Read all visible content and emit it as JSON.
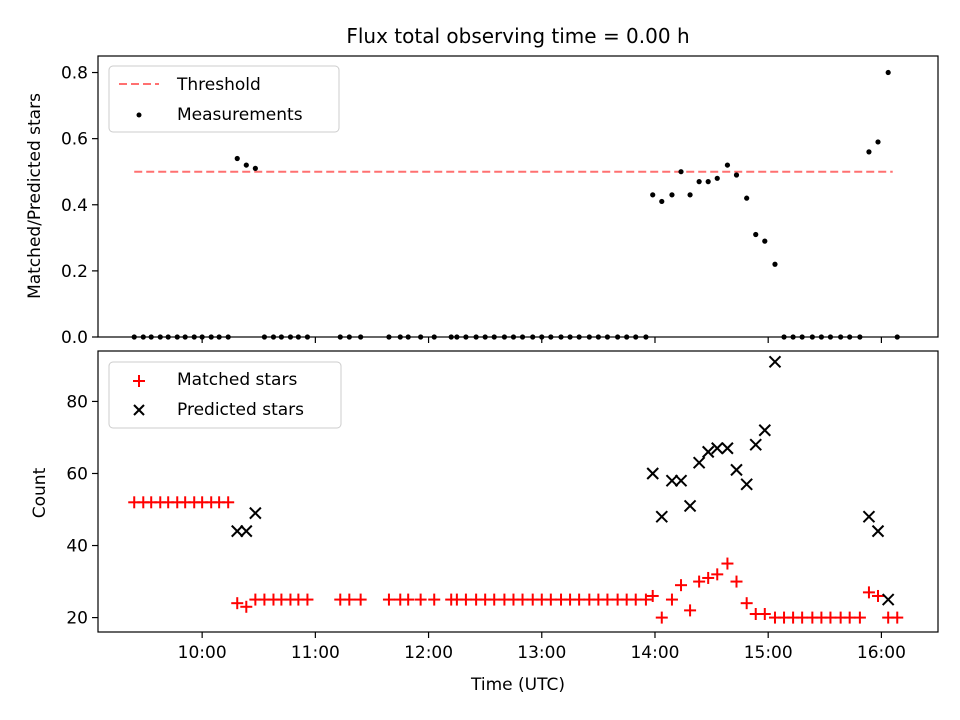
{
  "chart_data": [
    {
      "type": "scatter",
      "title": "Flux total observing time = 0.00 h",
      "xlabel": "",
      "ylabel": "Matched/Predicted stars",
      "ylim": [
        0,
        0.85
      ],
      "yticks": [
        0.0,
        0.2,
        0.4,
        0.6,
        0.8
      ],
      "ytick_labels": [
        "0.0",
        "0.2",
        "0.4",
        "0.6",
        "0.8"
      ],
      "xlim": [
        9.08,
        16.5
      ],
      "xticks": [
        10,
        11,
        12,
        13,
        14,
        15,
        16
      ],
      "grid": false,
      "legend_position": "upper-left",
      "threshold": {
        "name": "Threshold",
        "value": 0.5,
        "x_range": [
          9.4,
          16.1
        ],
        "color": "#ff7070"
      },
      "series": [
        {
          "name": "Measurements",
          "color": "#000000",
          "points": [
            [
              9.4,
              0
            ],
            [
              9.48,
              0
            ],
            [
              9.55,
              0
            ],
            [
              9.63,
              0
            ],
            [
              9.7,
              0
            ],
            [
              9.78,
              0
            ],
            [
              9.85,
              0
            ],
            [
              9.93,
              0
            ],
            [
              10.0,
              0
            ],
            [
              10.08,
              0
            ],
            [
              10.15,
              0
            ],
            [
              10.23,
              0
            ],
            [
              10.31,
              0.54
            ],
            [
              10.39,
              0.52
            ],
            [
              10.47,
              0.51
            ],
            [
              10.55,
              0
            ],
            [
              10.63,
              0
            ],
            [
              10.7,
              0
            ],
            [
              10.78,
              0
            ],
            [
              10.85,
              0
            ],
            [
              10.93,
              0
            ],
            [
              11.22,
              0
            ],
            [
              11.3,
              0
            ],
            [
              11.4,
              0
            ],
            [
              11.65,
              0
            ],
            [
              11.75,
              0
            ],
            [
              11.82,
              0
            ],
            [
              11.93,
              0
            ],
            [
              12.05,
              0
            ],
            [
              12.2,
              0
            ],
            [
              12.25,
              0
            ],
            [
              12.33,
              0
            ],
            [
              12.42,
              0
            ],
            [
              12.5,
              0
            ],
            [
              12.58,
              0
            ],
            [
              12.67,
              0
            ],
            [
              12.75,
              0
            ],
            [
              12.83,
              0
            ],
            [
              12.92,
              0
            ],
            [
              13.0,
              0
            ],
            [
              13.08,
              0
            ],
            [
              13.17,
              0
            ],
            [
              13.25,
              0
            ],
            [
              13.33,
              0
            ],
            [
              13.42,
              0
            ],
            [
              13.5,
              0
            ],
            [
              13.58,
              0
            ],
            [
              13.67,
              0
            ],
            [
              13.75,
              0
            ],
            [
              13.83,
              0
            ],
            [
              13.92,
              0
            ],
            [
              13.98,
              0.43
            ],
            [
              14.06,
              0.41
            ],
            [
              14.15,
              0.43
            ],
            [
              14.23,
              0.5
            ],
            [
              14.31,
              0.43
            ],
            [
              14.39,
              0.47
            ],
            [
              14.47,
              0.47
            ],
            [
              14.55,
              0.48
            ],
            [
              14.64,
              0.52
            ],
            [
              14.72,
              0.49
            ],
            [
              14.81,
              0.42
            ],
            [
              14.89,
              0.31
            ],
            [
              14.97,
              0.29
            ],
            [
              15.06,
              0.22
            ],
            [
              15.14,
              0
            ],
            [
              15.22,
              0
            ],
            [
              15.3,
              0
            ],
            [
              15.39,
              0
            ],
            [
              15.47,
              0
            ],
            [
              15.55,
              0
            ],
            [
              15.64,
              0
            ],
            [
              15.72,
              0
            ],
            [
              15.81,
              0
            ],
            [
              15.89,
              0.56
            ],
            [
              15.97,
              0.59
            ],
            [
              16.06,
              0.8
            ],
            [
              16.14,
              0
            ]
          ]
        }
      ]
    },
    {
      "type": "scatter",
      "title": "",
      "xlabel": "Time (UTC)",
      "ylabel": "Count",
      "ylim": [
        16,
        94
      ],
      "yticks": [
        20,
        40,
        60,
        80
      ],
      "ytick_labels": [
        "20",
        "40",
        "60",
        "80"
      ],
      "xlim": [
        9.08,
        16.5
      ],
      "xticks": [
        10,
        11,
        12,
        13,
        14,
        15,
        16
      ],
      "xtick_labels": [
        "10:00",
        "11:00",
        "12:00",
        "13:00",
        "14:00",
        "15:00",
        "16:00"
      ],
      "grid": false,
      "legend_position": "upper-left",
      "series": [
        {
          "name": "Matched stars",
          "marker": "plus",
          "color": "#ff0000",
          "points": [
            [
              9.4,
              52
            ],
            [
              9.48,
              52
            ],
            [
              9.55,
              52
            ],
            [
              9.63,
              52
            ],
            [
              9.7,
              52
            ],
            [
              9.78,
              52
            ],
            [
              9.85,
              52
            ],
            [
              9.93,
              52
            ],
            [
              10.0,
              52
            ],
            [
              10.08,
              52
            ],
            [
              10.15,
              52
            ],
            [
              10.23,
              52
            ],
            [
              10.31,
              24
            ],
            [
              10.39,
              23
            ],
            [
              10.47,
              25
            ],
            [
              10.55,
              25
            ],
            [
              10.63,
              25
            ],
            [
              10.7,
              25
            ],
            [
              10.78,
              25
            ],
            [
              10.85,
              25
            ],
            [
              10.93,
              25
            ],
            [
              11.22,
              25
            ],
            [
              11.3,
              25
            ],
            [
              11.4,
              25
            ],
            [
              11.65,
              25
            ],
            [
              11.75,
              25
            ],
            [
              11.82,
              25
            ],
            [
              11.93,
              25
            ],
            [
              12.05,
              25
            ],
            [
              12.2,
              25
            ],
            [
              12.25,
              25
            ],
            [
              12.33,
              25
            ],
            [
              12.42,
              25
            ],
            [
              12.5,
              25
            ],
            [
              12.58,
              25
            ],
            [
              12.67,
              25
            ],
            [
              12.75,
              25
            ],
            [
              12.83,
              25
            ],
            [
              12.92,
              25
            ],
            [
              13.0,
              25
            ],
            [
              13.08,
              25
            ],
            [
              13.17,
              25
            ],
            [
              13.25,
              25
            ],
            [
              13.33,
              25
            ],
            [
              13.42,
              25
            ],
            [
              13.5,
              25
            ],
            [
              13.58,
              25
            ],
            [
              13.67,
              25
            ],
            [
              13.75,
              25
            ],
            [
              13.83,
              25
            ],
            [
              13.92,
              25
            ],
            [
              13.98,
              26
            ],
            [
              14.06,
              20
            ],
            [
              14.15,
              25
            ],
            [
              14.23,
              29
            ],
            [
              14.31,
              22
            ],
            [
              14.39,
              30
            ],
            [
              14.47,
              31
            ],
            [
              14.55,
              32
            ],
            [
              14.64,
              35
            ],
            [
              14.72,
              30
            ],
            [
              14.81,
              24
            ],
            [
              14.89,
              21
            ],
            [
              14.97,
              21
            ],
            [
              15.06,
              20
            ],
            [
              15.14,
              20
            ],
            [
              15.22,
              20
            ],
            [
              15.3,
              20
            ],
            [
              15.39,
              20
            ],
            [
              15.47,
              20
            ],
            [
              15.55,
              20
            ],
            [
              15.64,
              20
            ],
            [
              15.72,
              20
            ],
            [
              15.81,
              20
            ],
            [
              15.89,
              27
            ],
            [
              15.97,
              26
            ],
            [
              16.06,
              20
            ],
            [
              16.14,
              20
            ]
          ]
        },
        {
          "name": "Predicted stars",
          "marker": "x",
          "color": "#000000",
          "points": [
            [
              10.31,
              44
            ],
            [
              10.39,
              44
            ],
            [
              10.47,
              49
            ],
            [
              13.98,
              60
            ],
            [
              14.06,
              48
            ],
            [
              14.15,
              58
            ],
            [
              14.23,
              58
            ],
            [
              14.31,
              51
            ],
            [
              14.39,
              63
            ],
            [
              14.47,
              66
            ],
            [
              14.55,
              67
            ],
            [
              14.64,
              67
            ],
            [
              14.72,
              61
            ],
            [
              14.81,
              57
            ],
            [
              14.89,
              68
            ],
            [
              14.97,
              72
            ],
            [
              15.06,
              91
            ],
            [
              15.89,
              48
            ],
            [
              15.97,
              44
            ],
            [
              16.06,
              25
            ]
          ]
        }
      ]
    }
  ]
}
